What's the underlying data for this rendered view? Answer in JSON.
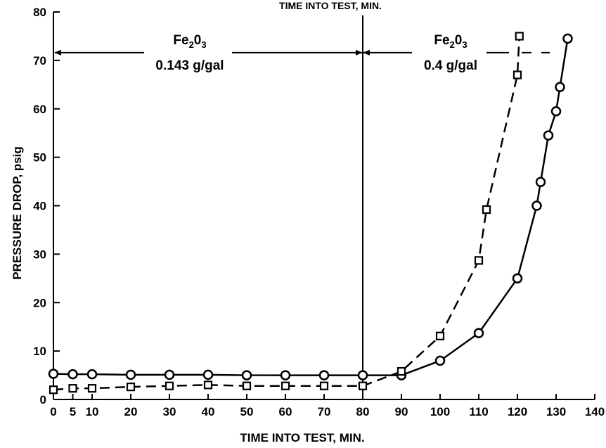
{
  "chart_data": {
    "type": "line",
    "title": "TIME INTO TEST, MIN.",
    "xlabel": "TIME INTO TEST, MIN.",
    "ylabel": "PRESSURE DROP, psig",
    "xlim": [
      0,
      140
    ],
    "ylim": [
      0,
      80
    ],
    "x_ticks": [
      "0",
      "5",
      "10",
      "20",
      "30",
      "40",
      "50",
      "60",
      "70",
      "80",
      "90",
      "100",
      "110",
      "120",
      "130",
      "140"
    ],
    "y_ticks": [
      "0",
      "10",
      "20",
      "30",
      "40",
      "50",
      "60",
      "70",
      "80"
    ],
    "grid": false,
    "series": [
      {
        "marker": "circle",
        "line_style": "solid",
        "points": [
          [
            0,
            5.3
          ],
          [
            5,
            5.2
          ],
          [
            10,
            5.2
          ],
          [
            20,
            5.1
          ],
          [
            30,
            5.1
          ],
          [
            40,
            5.1
          ],
          [
            50,
            5.0
          ],
          [
            60,
            5.0
          ],
          [
            70,
            5.0
          ],
          [
            80,
            5.0
          ],
          [
            90,
            5.0
          ],
          [
            100,
            8.0
          ],
          [
            110,
            13.7
          ],
          [
            120,
            25.0
          ],
          [
            125,
            40.0
          ],
          [
            126,
            44.9
          ],
          [
            128,
            54.5
          ],
          [
            130,
            59.5
          ],
          [
            131,
            64.5
          ],
          [
            133,
            74.5
          ]
        ]
      },
      {
        "marker": "square",
        "line_style": "dashed",
        "points": [
          [
            0,
            2.0
          ],
          [
            5,
            2.3
          ],
          [
            10,
            2.3
          ],
          [
            20,
            2.6
          ],
          [
            30,
            2.8
          ],
          [
            40,
            3.0
          ],
          [
            50,
            2.8
          ],
          [
            60,
            2.8
          ],
          [
            70,
            2.8
          ],
          [
            80,
            2.8
          ],
          [
            90,
            5.8
          ],
          [
            100,
            13.1
          ],
          [
            110,
            28.7
          ],
          [
            112,
            39.2
          ],
          [
            120,
            67.0
          ],
          [
            120.5,
            75.0
          ]
        ]
      }
    ],
    "vertical_line_x": 80,
    "annotations": [
      {
        "line1": "Fe",
        "sub1": "2",
        "mid": "0",
        "sub2": "3",
        "line2": "0.143 g/gal"
      },
      {
        "line1": "Fe",
        "sub1": "2",
        "mid": "0",
        "sub2": "3",
        "line2": "0.4 g/gal"
      }
    ]
  }
}
